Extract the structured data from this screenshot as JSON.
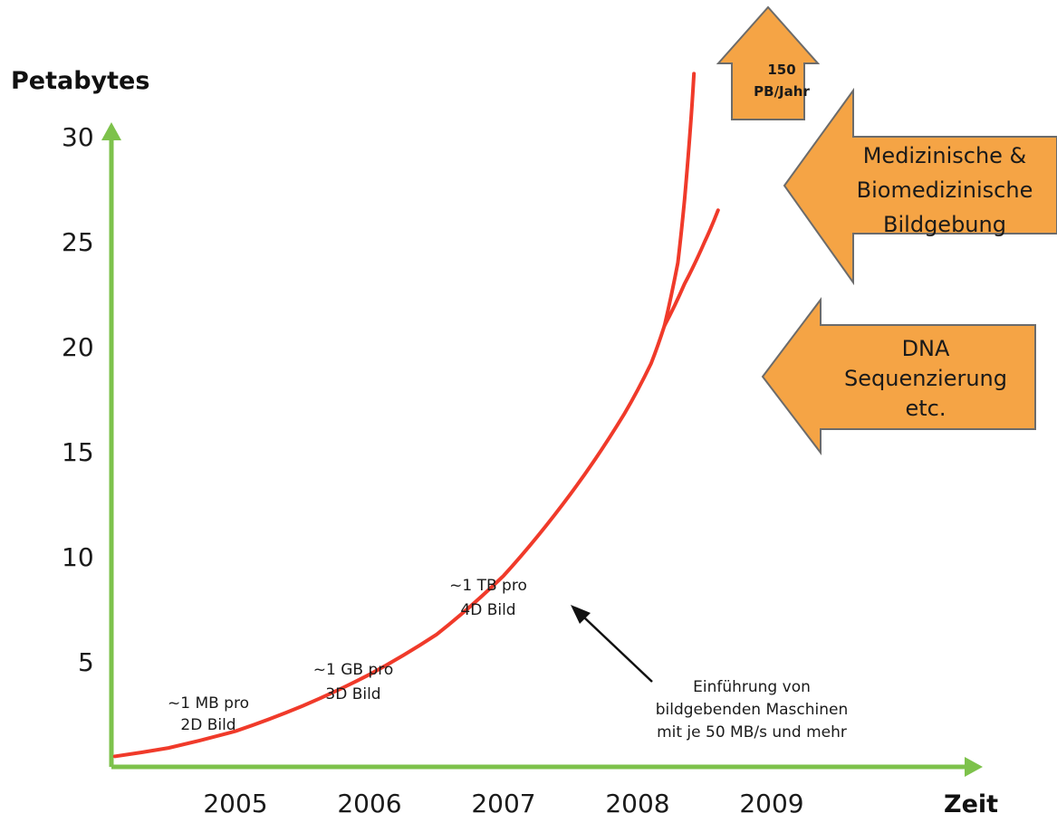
{
  "chart_data": {
    "type": "line",
    "ylabel": "Petabytes",
    "xlabel": "Zeit",
    "x_ticks": [
      "2005",
      "2006",
      "2007",
      "2008",
      "2009"
    ],
    "y_ticks": [
      "5",
      "10",
      "15",
      "20",
      "25",
      "30"
    ],
    "ylim": [
      0,
      32
    ],
    "xlim": [
      2004.1,
      2009.8
    ],
    "grid": false,
    "series": [
      {
        "x": [
          2004.1,
          2004.5,
          2005.0,
          2005.5,
          2006.0,
          2006.5,
          2007.0,
          2007.5,
          2007.9,
          2008.1,
          2008.2
        ],
        "y": [
          0.5,
          0.9,
          1.7,
          2.9,
          4.4,
          6.3,
          9.1,
          13.0,
          16.8,
          19.2,
          21.0
        ]
      },
      {
        "x": [
          2008.2,
          2008.3,
          2008.35,
          2008.4,
          2008.42
        ],
        "y": [
          21.0,
          24.0,
          27.0,
          31.0,
          33.0
        ]
      },
      {
        "x": [
          2008.2,
          2008.35,
          2008.5,
          2008.6
        ],
        "y": [
          21.0,
          23.0,
          25.0,
          26.5
        ]
      }
    ],
    "annotations": [
      {
        "id": "mb",
        "lines": [
          "~1 MB pro",
          "2D Bild"
        ]
      },
      {
        "id": "gb",
        "lines": [
          "~1 GB pro",
          "3D Bild"
        ]
      },
      {
        "id": "tb",
        "lines": [
          "~1 TB pro",
          "4D Bild"
        ]
      },
      {
        "id": "machines",
        "lines": [
          "Einführung von",
          "bildgebenden Maschinen",
          "mit je 50 MB/s und mehr"
        ]
      }
    ],
    "callouts": {
      "top": [
        "150",
        "PB/Jahr"
      ],
      "medical": [
        "Medizinische &",
        "Biomedizinische",
        "Bildgebung"
      ],
      "dna": [
        "DNA",
        "Sequenzierung",
        "etc."
      ]
    },
    "colors": {
      "axis": "#7dc24b",
      "curve": "#f03a2a",
      "callout_fill": "#f5a445",
      "callout_stroke": "#6b6b6b",
      "arrow": "#111111"
    }
  }
}
